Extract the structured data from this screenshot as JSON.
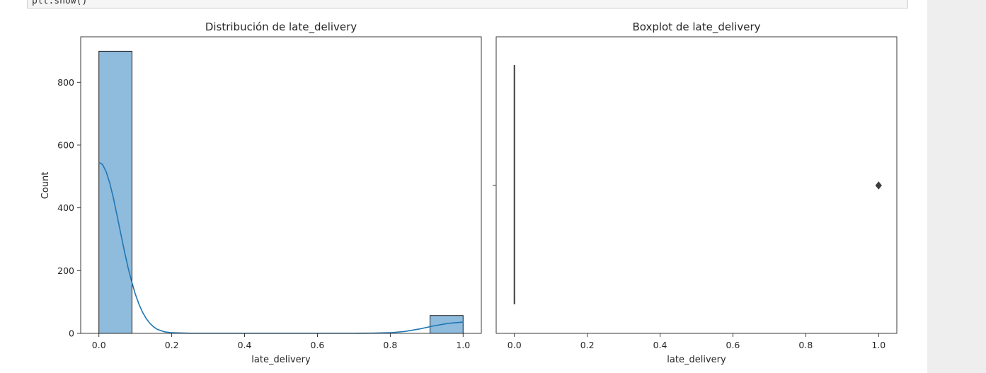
{
  "code_cell": {
    "text": "plt.show()"
  },
  "chart_data": [
    {
      "type": "bar",
      "title": "Distribución de late_delivery",
      "xlabel": "late_delivery",
      "ylabel": "Count",
      "xlim": [
        -0.05,
        1.05
      ],
      "ylim": [
        0,
        945
      ],
      "xticks": [
        0.0,
        0.2,
        0.4,
        0.6,
        0.8,
        1.0
      ],
      "xtick_labels": [
        "0.0",
        "0.2",
        "0.4",
        "0.6",
        "0.8",
        "1.0"
      ],
      "yticks": [
        0,
        200,
        400,
        600,
        800
      ],
      "ytick_labels": [
        "0",
        "200",
        "400",
        "600",
        "800"
      ],
      "bins": [
        {
          "x0": 0.0,
          "x1": 0.0909,
          "count": 899
        },
        {
          "x0": 0.9091,
          "x1": 1.0,
          "count": 57
        }
      ],
      "kde": {
        "x": [
          0.0,
          0.01,
          0.02,
          0.03,
          0.04,
          0.05,
          0.06,
          0.07,
          0.08,
          0.09,
          0.1,
          0.11,
          0.12,
          0.13,
          0.14,
          0.15,
          0.16,
          0.18,
          0.2,
          0.25,
          0.3,
          0.4,
          0.5,
          0.6,
          0.7,
          0.75,
          0.8,
          0.84,
          0.88,
          0.92,
          0.96,
          1.0
        ],
        "y": [
          545,
          538,
          515,
          478,
          430,
          375,
          318,
          262,
          210,
          165,
          125,
          93,
          67,
          47,
          32,
          21,
          13,
          5,
          2,
          0.5,
          0.3,
          0.3,
          0.3,
          0.3,
          0.3,
          0.6,
          2,
          6,
          14,
          24,
          32,
          36
        ]
      },
      "grid": false,
      "bar_color": "#8fbbdc",
      "line_color": "#1f77b4"
    },
    {
      "type": "box",
      "title": "Boxplot de late_delivery",
      "xlabel": "late_delivery",
      "xlim": [
        -0.05,
        1.05
      ],
      "xticks": [
        0.0,
        0.2,
        0.4,
        0.6,
        0.8,
        1.0
      ],
      "xtick_labels": [
        "0.0",
        "0.2",
        "0.4",
        "0.6",
        "0.8",
        "1.0"
      ],
      "box": {
        "q1": 0,
        "median": 0,
        "q3": 0,
        "whisker_low": 0,
        "whisker_high": 0
      },
      "outliers": [
        1.0
      ],
      "grid": false,
      "color": "#3d3d3d"
    }
  ]
}
